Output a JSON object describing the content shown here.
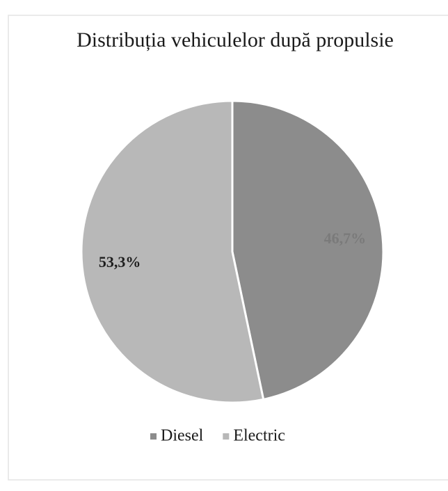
{
  "chart_data": {
    "type": "pie",
    "title": "Distribuția vehiculelor după propulsie",
    "categories": [
      "Diesel",
      "Electric"
    ],
    "values": [
      46.7,
      53.3
    ],
    "value_labels": [
      "46,7%",
      "53,3%"
    ],
    "colors": [
      "#8c8c8c",
      "#b8b8b8"
    ],
    "label_colors": [
      "#7a7a7a",
      "#1e1e1e"
    ],
    "legend": "bottom"
  }
}
